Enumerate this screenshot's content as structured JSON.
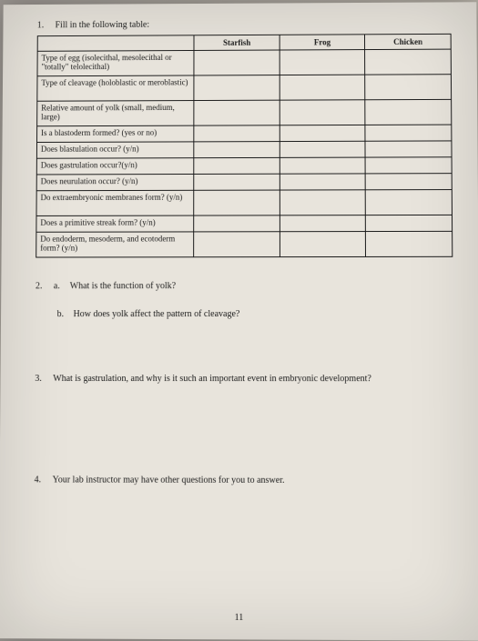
{
  "q1": {
    "number": "1.",
    "instruction": "Fill in the following table:",
    "columns": [
      "Starfish",
      "Frog",
      "Chicken"
    ],
    "rows": [
      {
        "label": "Type of egg\n(isolecithal, mesolecithal or \"totally\" telolecithal)",
        "height": "tall"
      },
      {
        "label": "Type of cleavage (holoblastic or meroblastic)",
        "height": "tall"
      },
      {
        "label": "Relative amount of yolk (small, medium, large)",
        "height": "tall"
      },
      {
        "label": "Is a blastoderm formed? (yes or no)",
        "height": "med"
      },
      {
        "label": "Does blastulation occur? (y/n)",
        "height": "med"
      },
      {
        "label": "Does gastrulation occur?(y/n)",
        "height": "med"
      },
      {
        "label": "Does neurulation occur? (y/n)",
        "height": "med"
      },
      {
        "label": "Do extraembryonic membranes form? (y/n)",
        "height": "tall"
      },
      {
        "label": "Does a primitive streak form? (y/n)",
        "height": "med"
      },
      {
        "label": "Do endoderm, mesoderm, and ecotoderm form? (y/n)",
        "height": "tall"
      }
    ]
  },
  "q2": {
    "number": "2.",
    "a": {
      "letter": "a.",
      "text": "What is the function of yolk?"
    },
    "b": {
      "letter": "b.",
      "text": "How does yolk affect the pattern of cleavage?"
    }
  },
  "q3": {
    "number": "3.",
    "text": "What is gastrulation, and why is it such an important event in embryonic development?"
  },
  "q4": {
    "number": "4.",
    "text": "Your lab instructor may have other questions for you to answer."
  },
  "page_number": "11",
  "style": {
    "paper_bg": "#e8e4dc",
    "text_color": "#1a1a1a",
    "border_color": "#1a1a1a"
  }
}
